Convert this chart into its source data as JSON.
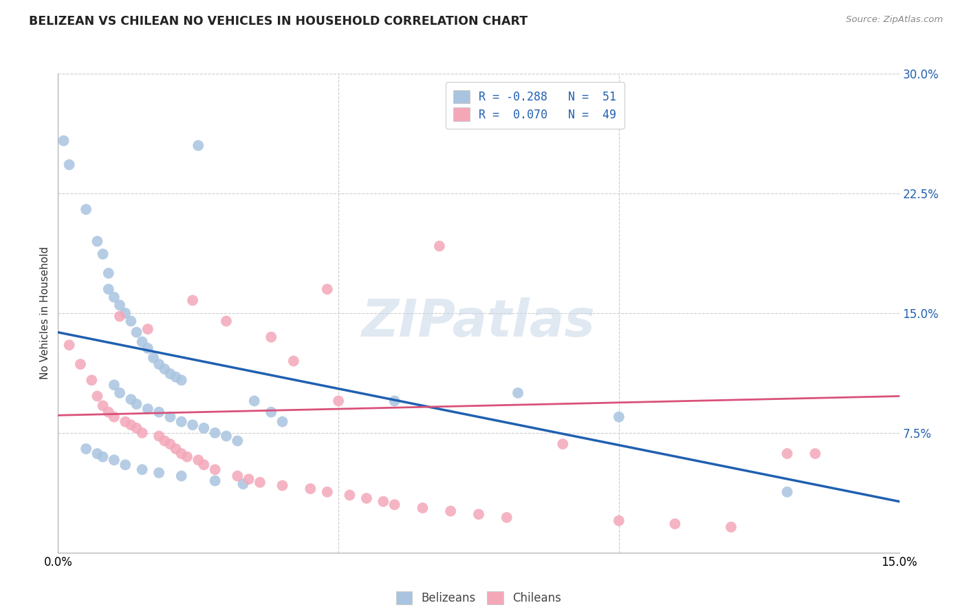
{
  "title": "BELIZEAN VS CHILEAN NO VEHICLES IN HOUSEHOLD CORRELATION CHART",
  "source": "Source: ZipAtlas.com",
  "ylabel": "No Vehicles in Household",
  "xlim": [
    0.0,
    0.15
  ],
  "ylim": [
    0.0,
    0.3
  ],
  "xticks": [
    0.0,
    0.05,
    0.1,
    0.15
  ],
  "xtick_labels": [
    "0.0%",
    "",
    "",
    "15.0%"
  ],
  "yticks_right": [
    0.075,
    0.15,
    0.225,
    0.3
  ],
  "ytick_labels_right": [
    "7.5%",
    "15.0%",
    "22.5%",
    "30.0%"
  ],
  "legend_r_belizean": "-0.288",
  "legend_n_belizean": "51",
  "legend_r_chilean": "0.070",
  "legend_n_chilean": "49",
  "belizean_color": "#a8c4e0",
  "chilean_color": "#f4a7b9",
  "belizean_line_color": "#2060b0",
  "chilean_line_color": "#d9517a",
  "watermark": "ZIPatlas",
  "belizean_x": [
    0.001,
    0.002,
    0.005,
    0.007,
    0.008,
    0.009,
    0.009,
    0.01,
    0.011,
    0.012,
    0.013,
    0.014,
    0.015,
    0.016,
    0.017,
    0.018,
    0.019,
    0.02,
    0.021,
    0.022,
    0.01,
    0.011,
    0.013,
    0.014,
    0.016,
    0.018,
    0.02,
    0.022,
    0.024,
    0.026,
    0.028,
    0.03,
    0.032,
    0.035,
    0.038,
    0.04,
    0.005,
    0.007,
    0.008,
    0.01,
    0.012,
    0.015,
    0.018,
    0.022,
    0.028,
    0.033,
    0.06,
    0.082,
    0.1,
    0.13,
    0.025
  ],
  "belizean_y": [
    0.258,
    0.243,
    0.215,
    0.195,
    0.187,
    0.175,
    0.165,
    0.16,
    0.155,
    0.15,
    0.145,
    0.138,
    0.132,
    0.128,
    0.122,
    0.118,
    0.115,
    0.112,
    0.11,
    0.108,
    0.105,
    0.1,
    0.096,
    0.093,
    0.09,
    0.088,
    0.085,
    0.082,
    0.08,
    0.078,
    0.075,
    0.073,
    0.07,
    0.095,
    0.088,
    0.082,
    0.065,
    0.062,
    0.06,
    0.058,
    0.055,
    0.052,
    0.05,
    0.048,
    0.045,
    0.043,
    0.095,
    0.1,
    0.085,
    0.038,
    0.255
  ],
  "chilean_x": [
    0.002,
    0.004,
    0.006,
    0.007,
    0.008,
    0.009,
    0.01,
    0.011,
    0.012,
    0.013,
    0.014,
    0.015,
    0.016,
    0.018,
    0.019,
    0.02,
    0.021,
    0.022,
    0.023,
    0.024,
    0.025,
    0.026,
    0.028,
    0.03,
    0.032,
    0.034,
    0.036,
    0.038,
    0.04,
    0.042,
    0.045,
    0.048,
    0.05,
    0.052,
    0.055,
    0.058,
    0.06,
    0.065,
    0.07,
    0.075,
    0.08,
    0.09,
    0.1,
    0.11,
    0.12,
    0.13,
    0.135,
    0.048,
    0.068
  ],
  "chilean_y": [
    0.13,
    0.118,
    0.108,
    0.098,
    0.092,
    0.088,
    0.085,
    0.148,
    0.082,
    0.08,
    0.078,
    0.075,
    0.14,
    0.073,
    0.07,
    0.068,
    0.065,
    0.062,
    0.06,
    0.158,
    0.058,
    0.055,
    0.052,
    0.145,
    0.048,
    0.046,
    0.044,
    0.135,
    0.042,
    0.12,
    0.04,
    0.038,
    0.095,
    0.036,
    0.034,
    0.032,
    0.03,
    0.028,
    0.026,
    0.024,
    0.022,
    0.068,
    0.02,
    0.018,
    0.016,
    0.062,
    0.062,
    0.165,
    0.192
  ],
  "bel_line_x0": 0.0,
  "bel_line_y0": 0.138,
  "bel_line_x1": 0.15,
  "bel_line_y1": 0.032,
  "chi_line_x0": 0.0,
  "chi_line_y0": 0.086,
  "chi_line_x1": 0.15,
  "chi_line_y1": 0.098
}
